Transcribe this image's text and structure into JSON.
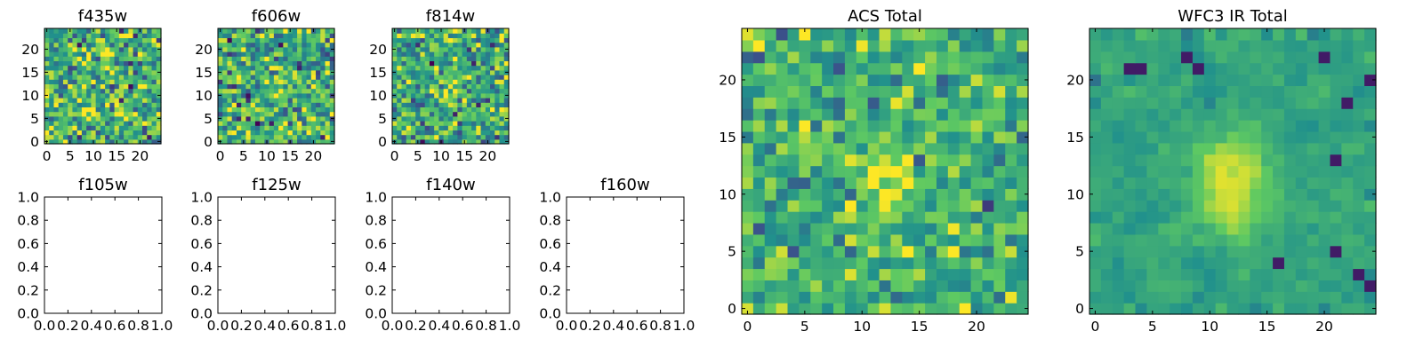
{
  "chart_data": [
    {
      "type": "heatmap",
      "title": "f435w",
      "image_size": [
        25,
        25
      ],
      "xlim": [
        -0.5,
        24.5
      ],
      "ylim": [
        -0.5,
        24.5
      ],
      "xticks": [
        0,
        5,
        10,
        15,
        20
      ],
      "yticks": [
        0,
        5,
        10,
        15,
        20
      ],
      "colormap": "viridis",
      "content": "noise"
    },
    {
      "type": "heatmap",
      "title": "f606w",
      "image_size": [
        25,
        25
      ],
      "xlim": [
        -0.5,
        24.5
      ],
      "ylim": [
        -0.5,
        24.5
      ],
      "xticks": [
        0,
        5,
        10,
        15,
        20
      ],
      "yticks": [
        0,
        5,
        10,
        15,
        20
      ],
      "colormap": "viridis",
      "content": "noise with faint central source"
    },
    {
      "type": "heatmap",
      "title": "f814w",
      "image_size": [
        25,
        25
      ],
      "xlim": [
        -0.5,
        24.5
      ],
      "ylim": [
        -0.5,
        24.5
      ],
      "xticks": [
        0,
        5,
        10,
        15,
        20
      ],
      "yticks": [
        0,
        5,
        10,
        15,
        20
      ],
      "colormap": "viridis",
      "content": "noise with central source"
    },
    {
      "type": "heatmap",
      "title": "f105w",
      "xlim": [
        0,
        1
      ],
      "ylim": [
        0,
        1
      ],
      "xticks": [
        "0.0",
        "0.2",
        "0.4",
        "0.6",
        "0.8",
        "1.0"
      ],
      "yticks": [
        "0.0",
        "0.2",
        "0.4",
        "0.6",
        "0.8",
        "1.0"
      ],
      "content": "empty"
    },
    {
      "type": "heatmap",
      "title": "f125w",
      "xlim": [
        0,
        1
      ],
      "ylim": [
        0,
        1
      ],
      "xticks": [
        "0.0",
        "0.2",
        "0.4",
        "0.6",
        "0.8",
        "1.0"
      ],
      "yticks": [
        "0.0",
        "0.2",
        "0.4",
        "0.6",
        "0.8",
        "1.0"
      ],
      "content": "empty"
    },
    {
      "type": "heatmap",
      "title": "f140w",
      "xlim": [
        0,
        1
      ],
      "ylim": [
        0,
        1
      ],
      "xticks": [
        "0.0",
        "0.2",
        "0.4",
        "0.6",
        "0.8",
        "1.0"
      ],
      "yticks": [
        "0.0",
        "0.2",
        "0.4",
        "0.6",
        "0.8",
        "1.0"
      ],
      "content": "empty"
    },
    {
      "type": "heatmap",
      "title": "f160w",
      "xlim": [
        0,
        1
      ],
      "ylim": [
        0,
        1
      ],
      "xticks": [
        "0.0",
        "0.2",
        "0.4",
        "0.6",
        "0.8",
        "1.0"
      ],
      "yticks": [
        "0.0",
        "0.2",
        "0.4",
        "0.6",
        "0.8",
        "1.0"
      ],
      "content": "empty"
    },
    {
      "type": "heatmap",
      "title": "ACS Total",
      "image_size": [
        25,
        25
      ],
      "xlim": [
        -0.5,
        24.5
      ],
      "ylim": [
        -0.5,
        24.5
      ],
      "xticks": [
        0,
        5,
        10,
        15,
        20
      ],
      "yticks": [
        0,
        5,
        10,
        15,
        20
      ],
      "colormap": "viridis",
      "content": "noisy with central source"
    },
    {
      "type": "heatmap",
      "title": "WFC3 IR Total",
      "image_size": [
        25,
        25
      ],
      "xlim": [
        -0.5,
        24.5
      ],
      "ylim": [
        -0.5,
        24.5
      ],
      "xticks": [
        0,
        5,
        10,
        15,
        20
      ],
      "yticks": [
        0,
        5,
        10,
        15,
        20
      ],
      "colormap": "viridis",
      "content": "smooth with bright central source near (12, 11)"
    }
  ],
  "colormap_stops": [
    "#440154",
    "#3b528b",
    "#21918c",
    "#5ec962",
    "#fde725"
  ]
}
